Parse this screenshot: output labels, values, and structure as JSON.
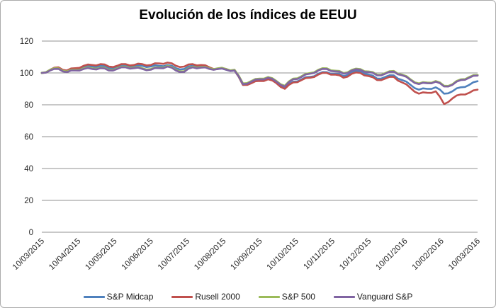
{
  "chart_data": {
    "type": "line",
    "title": "Evolución de los índices de EEUU",
    "xlabel": "",
    "ylabel": "",
    "ylim": [
      0,
      120
    ],
    "y_ticks": [
      120,
      100,
      80,
      60,
      40,
      20,
      0
    ],
    "grid": "horizontal-only",
    "gridline_color": "#909090",
    "legend_position": "bottom",
    "x_tick_labels": [
      "10/03/2015",
      "10/04/2015",
      "10/05/2015",
      "10/06/2015",
      "10/07/2015",
      "10/08/2015",
      "10/09/2015",
      "10/10/2015",
      "10/11/2015",
      "10/12/2015",
      "10/01/2016",
      "10/02/2016",
      "10/03/2016"
    ],
    "x_range": [
      "10/03/2015",
      "10/03/2016"
    ],
    "sample_interval": "weekly (values estimated from plot, indexed to 100 at 10/03/2015)",
    "series": [
      {
        "name": "S&P Midcap",
        "color": "#4F81BD",
        "values": [
          100,
          102,
          103,
          101.5,
          102.5,
          104,
          104,
          104.5,
          103,
          104,
          104.5,
          104,
          104.5,
          104,
          104.5,
          105,
          103,
          102.5,
          104.5,
          104,
          103,
          102.5,
          102,
          101.5,
          92.5,
          94,
          95.5,
          96.5,
          94,
          90.5,
          94.5,
          96,
          97.5,
          99.5,
          100.5,
          99.5,
          98,
          100.5,
          101,
          99,
          96.5,
          97.5,
          98.5,
          95.5,
          92.5,
          89.5,
          90,
          91,
          87,
          88.5,
          91,
          92.5,
          94.8
        ]
      },
      {
        "name": "Rusell 2000",
        "color": "#C0504D",
        "values": [
          100,
          102,
          103.5,
          101.5,
          103,
          104.5,
          105,
          105.5,
          104,
          104.5,
          105.5,
          105,
          105.5,
          105,
          106,
          106.5,
          104.5,
          104,
          105.5,
          105,
          103.5,
          102.5,
          102.5,
          101.5,
          92.5,
          93.5,
          95,
          96,
          93.5,
          90,
          94,
          95.5,
          97,
          99,
          100,
          99,
          97,
          99.5,
          100,
          98,
          95.5,
          96.5,
          97.5,
          94,
          90.5,
          87,
          87.5,
          88.5,
          80.5,
          84,
          86.5,
          87.5,
          89.5
        ]
      },
      {
        "name": "S&P 500",
        "color": "#9BBB59",
        "values": [
          100,
          101.8,
          102.8,
          100.8,
          101.8,
          102.8,
          102.8,
          103.3,
          101.8,
          102.8,
          103.8,
          103.3,
          102.8,
          102.3,
          103.3,
          104.3,
          101.8,
          101,
          103.8,
          103.6,
          102.8,
          102.8,
          102.3,
          101.8,
          93.3,
          94.8,
          96.3,
          97.3,
          94.8,
          91.8,
          96.3,
          97.8,
          99.8,
          101.8,
          102.8,
          101.3,
          99.8,
          101.8,
          102.3,
          100.8,
          98.8,
          99.8,
          101.1,
          98.8,
          95.8,
          93.3,
          93.8,
          94.8,
          91.8,
          92.8,
          95.8,
          97.3,
          98.6
        ]
      },
      {
        "name": "Vanguard S&P",
        "color": "#8064A2",
        "values": [
          100,
          101.5,
          102.5,
          100.5,
          101.5,
          102.5,
          102.5,
          103,
          101.5,
          102.5,
          103.5,
          103,
          102.5,
          102,
          103,
          104,
          101.5,
          100.7,
          103.5,
          103.3,
          102.5,
          102.5,
          102,
          101.5,
          93,
          94.5,
          96,
          97,
          94.5,
          91.5,
          96,
          97.5,
          99.5,
          101.5,
          102.5,
          101,
          99.5,
          101.5,
          102,
          100.5,
          98.5,
          99.5,
          100.8,
          98.5,
          95.5,
          93,
          93.5,
          94.5,
          91.5,
          92.5,
          95.5,
          97,
          98.3
        ]
      }
    ]
  },
  "text_color": "#262626"
}
